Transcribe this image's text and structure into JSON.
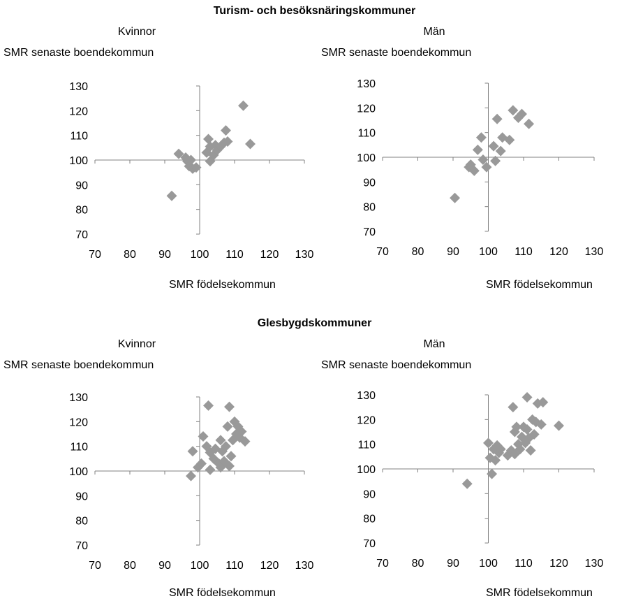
{
  "sections": [
    {
      "title": "Turism- och besöksnäringskommuner"
    },
    {
      "title": "Glesbygdskommuner"
    }
  ],
  "chart_data": [
    {
      "type": "scatter",
      "group": "Turism- och besöksnäringskommuner",
      "title": "Kvinnor",
      "ylabel": "SMR senaste boendekommun",
      "xlabel": "SMR födelsekommun",
      "xlim": [
        70,
        130
      ],
      "ylim": [
        70,
        130
      ],
      "x_ticks": [
        70,
        80,
        90,
        100,
        110,
        120,
        130
      ],
      "y_ticks": [
        70,
        80,
        90,
        100,
        110,
        120,
        130
      ],
      "marker_color": "#999999",
      "axis_color": "#808080",
      "points": [
        [
          92,
          85.5
        ],
        [
          94,
          102.5
        ],
        [
          96,
          101
        ],
        [
          96.5,
          99.5
        ],
        [
          97,
          97.5
        ],
        [
          97.5,
          100
        ],
        [
          98,
          96.5
        ],
        [
          99,
          97
        ],
        [
          102,
          103
        ],
        [
          102.5,
          108.5
        ],
        [
          103,
          99.5
        ],
        [
          103,
          105.5
        ],
        [
          104,
          102
        ],
        [
          104.5,
          106
        ],
        [
          105,
          104
        ],
        [
          106,
          105.5
        ],
        [
          107,
          107
        ],
        [
          107.5,
          112
        ],
        [
          108,
          107.5
        ],
        [
          112.5,
          122
        ],
        [
          114.5,
          106.5
        ]
      ]
    },
    {
      "type": "scatter",
      "group": "Turism- och besöksnäringskommuner",
      "title": "Män",
      "ylabel": "SMR senaste boendekommun",
      "xlabel": "SMR födelsekommun",
      "xlim": [
        70,
        130
      ],
      "ylim": [
        70,
        130
      ],
      "x_ticks": [
        70,
        80,
        90,
        100,
        110,
        120,
        130
      ],
      "y_ticks": [
        70,
        80,
        90,
        100,
        110,
        120,
        130
      ],
      "marker_color": "#999999",
      "axis_color": "#808080",
      "points": [
        [
          90.5,
          83.5
        ],
        [
          94.5,
          96
        ],
        [
          95,
          97
        ],
        [
          96,
          94.5
        ],
        [
          97,
          103
        ],
        [
          98,
          108
        ],
        [
          98.5,
          99
        ],
        [
          99.5,
          96
        ],
        [
          101.5,
          104.5
        ],
        [
          102,
          98.5
        ],
        [
          102.5,
          115.5
        ],
        [
          103.5,
          102.5
        ],
        [
          104,
          108
        ],
        [
          106,
          107
        ],
        [
          107,
          119
        ],
        [
          108.5,
          116
        ],
        [
          109.5,
          117.5
        ],
        [
          111.5,
          113.5
        ]
      ]
    },
    {
      "type": "scatter",
      "group": "Glesbygdskommuner",
      "title": "Kvinnor",
      "ylabel": "SMR senaste boendekommun",
      "xlabel": "SMR födelsekommun",
      "xlim": [
        70,
        130
      ],
      "ylim": [
        70,
        130
      ],
      "x_ticks": [
        70,
        80,
        90,
        100,
        110,
        120,
        130
      ],
      "y_ticks": [
        70,
        80,
        90,
        100,
        110,
        120,
        130
      ],
      "marker_color": "#999999",
      "axis_color": "#808080",
      "points": [
        [
          97.5,
          98
        ],
        [
          98,
          108
        ],
        [
          99.5,
          101.5
        ],
        [
          100.5,
          103
        ],
        [
          101,
          114
        ],
        [
          102,
          110
        ],
        [
          102.5,
          126.5
        ],
        [
          103,
          100.5
        ],
        [
          103,
          107.5
        ],
        [
          104,
          105
        ],
        [
          104.5,
          109
        ],
        [
          105.5,
          103
        ],
        [
          106,
          112.5
        ],
        [
          106,
          101.5
        ],
        [
          106.5,
          108
        ],
        [
          107,
          104
        ],
        [
          107.5,
          110
        ],
        [
          108,
          118
        ],
        [
          108.5,
          126
        ],
        [
          108.5,
          102
        ],
        [
          109,
          106
        ],
        [
          109.5,
          112.5
        ],
        [
          110,
          120
        ],
        [
          110.5,
          115
        ],
        [
          111,
          118
        ],
        [
          111.5,
          113.5
        ],
        [
          112,
          116
        ],
        [
          113,
          112
        ]
      ]
    },
    {
      "type": "scatter",
      "group": "Glesbygdskommuner",
      "title": "Män",
      "ylabel": "SMR senaste boendekommun",
      "xlabel": "SMR födelsekommun",
      "xlim": [
        70,
        130
      ],
      "ylim": [
        70,
        130
      ],
      "x_ticks": [
        70,
        80,
        90,
        100,
        110,
        120,
        130
      ],
      "y_ticks": [
        70,
        80,
        90,
        100,
        110,
        120,
        130
      ],
      "marker_color": "#999999",
      "axis_color": "#808080",
      "points": [
        [
          94,
          94
        ],
        [
          100,
          110.5
        ],
        [
          100.5,
          104.5
        ],
        [
          101,
          98
        ],
        [
          101.5,
          108
        ],
        [
          102,
          103.5
        ],
        [
          102.5,
          109.5
        ],
        [
          103,
          106.5
        ],
        [
          103.5,
          108
        ],
        [
          105.5,
          105.5
        ],
        [
          106.5,
          107.5
        ],
        [
          107,
          125
        ],
        [
          107.5,
          115
        ],
        [
          107.5,
          106
        ],
        [
          108,
          117
        ],
        [
          108.5,
          110
        ],
        [
          109,
          108
        ],
        [
          109.5,
          113
        ],
        [
          110,
          117
        ],
        [
          110.5,
          110.5
        ],
        [
          111,
          129
        ],
        [
          111,
          116
        ],
        [
          111.5,
          112.5
        ],
        [
          112,
          107.5
        ],
        [
          112.5,
          120
        ],
        [
          113,
          114
        ],
        [
          113.5,
          119
        ],
        [
          114,
          126.5
        ],
        [
          115,
          118
        ],
        [
          115.5,
          127
        ],
        [
          120,
          117.5
        ]
      ]
    }
  ]
}
